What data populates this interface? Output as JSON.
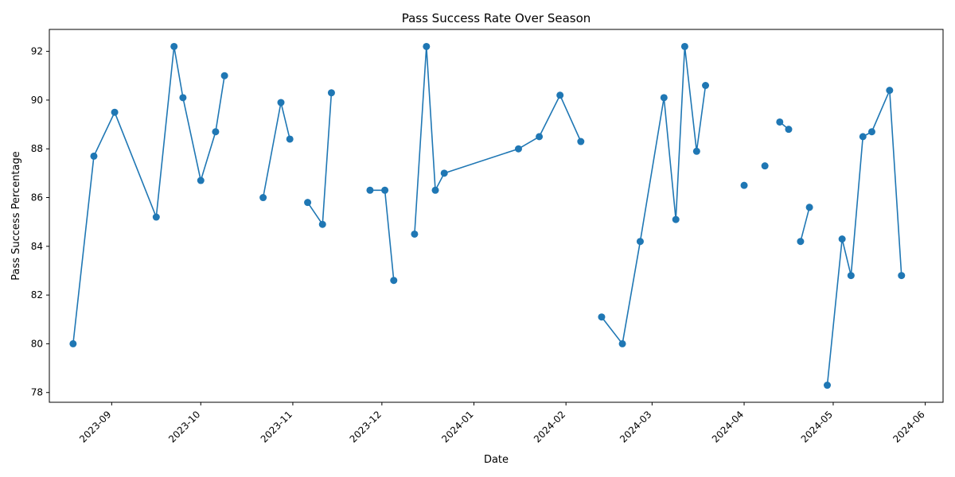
{
  "chart_data": {
    "type": "line",
    "title": "Pass Success Rate Over Season",
    "xlabel": "Date",
    "ylabel": "Pass Success Percentage",
    "xlim": [
      "2023-08-11",
      "2024-06-07"
    ],
    "ylim": [
      77.6,
      92.9
    ],
    "yticks": [
      78,
      80,
      82,
      84,
      86,
      88,
      90,
      92
    ],
    "xticks": [
      "2023-09-01",
      "2023-10-01",
      "2023-11-01",
      "2023-12-01",
      "2024-01-01",
      "2024-02-01",
      "2024-03-01",
      "2024-04-01",
      "2024-05-01",
      "2024-06-01"
    ],
    "xtick_labels": [
      "2023-09",
      "2023-10",
      "2023-11",
      "2023-12",
      "2024-01",
      "2024-02",
      "2024-03",
      "2024-04",
      "2024-05",
      "2024-06"
    ],
    "grid": false,
    "line_color": "#1f77b4",
    "series": [
      {
        "segments": [
          [
            {
              "x": "2023-08-19",
              "y": 80.0
            },
            {
              "x": "2023-08-26",
              "y": 87.7
            },
            {
              "x": "2023-09-02",
              "y": 89.5
            },
            {
              "x": "2023-09-16",
              "y": 85.2
            },
            {
              "x": "2023-09-22",
              "y": 92.2
            },
            {
              "x": "2023-09-25",
              "y": 90.1
            },
            {
              "x": "2023-10-01",
              "y": 86.7
            },
            {
              "x": "2023-10-06",
              "y": 88.7
            },
            {
              "x": "2023-10-09",
              "y": 91.0
            }
          ],
          [
            {
              "x": "2023-10-22",
              "y": 86.0
            },
            {
              "x": "2023-10-28",
              "y": 89.9
            },
            {
              "x": "2023-10-31",
              "y": 88.4
            }
          ],
          [
            {
              "x": "2023-11-06",
              "y": 85.8
            },
            {
              "x": "2023-11-11",
              "y": 84.9
            },
            {
              "x": "2023-11-14",
              "y": 90.3
            }
          ],
          [
            {
              "x": "2023-11-27",
              "y": 86.3
            },
            {
              "x": "2023-12-02",
              "y": 86.3
            },
            {
              "x": "2023-12-05",
              "y": 82.6
            }
          ],
          [
            {
              "x": "2023-12-12",
              "y": 84.5
            },
            {
              "x": "2023-12-16",
              "y": 92.2
            },
            {
              "x": "2023-12-19",
              "y": 86.3
            },
            {
              "x": "2023-12-22",
              "y": 87.0
            },
            {
              "x": "2024-01-16",
              "y": 88.0
            },
            {
              "x": "2024-01-23",
              "y": 88.5
            },
            {
              "x": "2024-01-30",
              "y": 90.2
            },
            {
              "x": "2024-02-06",
              "y": 88.3
            }
          ],
          [
            {
              "x": "2024-02-13",
              "y": 81.1
            },
            {
              "x": "2024-02-20",
              "y": 80.0
            },
            {
              "x": "2024-02-26",
              "y": 84.2
            },
            {
              "x": "2024-03-05",
              "y": 90.1
            },
            {
              "x": "2024-03-09",
              "y": 85.1
            },
            {
              "x": "2024-03-12",
              "y": 92.2
            },
            {
              "x": "2024-03-16",
              "y": 87.9
            },
            {
              "x": "2024-03-19",
              "y": 90.6
            }
          ],
          [
            {
              "x": "2024-04-01",
              "y": 86.5
            }
          ],
          [
            {
              "x": "2024-04-08",
              "y": 87.3
            }
          ],
          [
            {
              "x": "2024-04-13",
              "y": 89.1
            },
            {
              "x": "2024-04-16",
              "y": 88.8
            }
          ],
          [
            {
              "x": "2024-04-20",
              "y": 84.2
            },
            {
              "x": "2024-04-23",
              "y": 85.6
            }
          ],
          [
            {
              "x": "2024-04-29",
              "y": 78.3
            },
            {
              "x": "2024-05-04",
              "y": 84.3
            },
            {
              "x": "2024-05-07",
              "y": 82.8
            },
            {
              "x": "2024-05-11",
              "y": 88.5
            },
            {
              "x": "2024-05-14",
              "y": 88.7
            },
            {
              "x": "2024-05-20",
              "y": 90.4
            },
            {
              "x": "2024-05-24",
              "y": 82.8
            }
          ]
        ]
      }
    ]
  }
}
